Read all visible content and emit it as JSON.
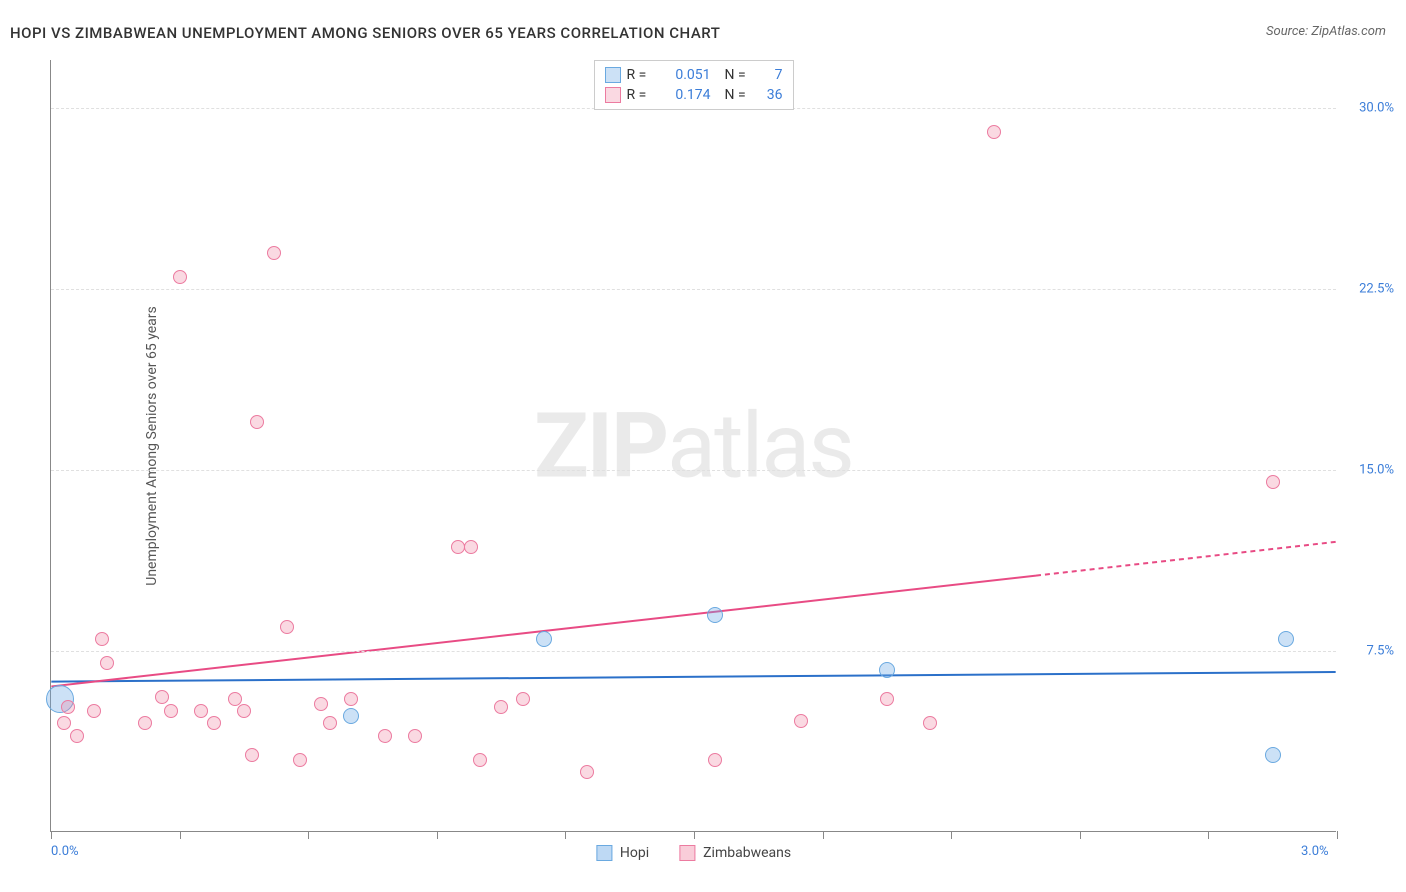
{
  "title": "HOPI VS ZIMBABWEAN UNEMPLOYMENT AMONG SENIORS OVER 65 YEARS CORRELATION CHART",
  "source": "Source: ZipAtlas.com",
  "ylabel": "Unemployment Among Seniors over 65 years",
  "watermark_bold": "ZIP",
  "watermark_light": "atlas",
  "chart": {
    "type": "scatter",
    "xlim": [
      0.0,
      3.0
    ],
    "ylim": [
      0.0,
      32.0
    ],
    "x_ticks_pct": [
      0,
      10,
      20,
      30,
      40,
      50,
      60,
      70,
      80,
      90,
      100
    ],
    "x_axis_labels": [
      {
        "pos": 0,
        "text": "0.0%"
      },
      {
        "pos": 100,
        "text": "3.0%"
      }
    ],
    "y_gridlines": [
      7.5,
      15.0,
      22.5,
      30.0
    ],
    "y_axis_labels": [
      {
        "val": 7.5,
        "text": "7.5%"
      },
      {
        "val": 15.0,
        "text": "15.0%"
      },
      {
        "val": 22.5,
        "text": "22.5%"
      },
      {
        "val": 30.0,
        "text": "30.0%"
      }
    ],
    "series": [
      {
        "name": "Hopi",
        "color_fill": "rgba(110,170,230,0.35)",
        "color_stroke": "#6aa9e0",
        "line_color": "#2b70c9",
        "r_value": "0.051",
        "n_value": "7",
        "trend": {
          "x1": 0.0,
          "y1": 6.2,
          "x2": 3.0,
          "y2": 6.6,
          "solid_until": 3.0
        },
        "points": [
          {
            "x": 0.02,
            "y": 5.5,
            "r": 14
          },
          {
            "x": 0.7,
            "y": 4.8,
            "r": 8
          },
          {
            "x": 1.15,
            "y": 8.0,
            "r": 8
          },
          {
            "x": 1.55,
            "y": 9.0,
            "r": 8
          },
          {
            "x": 1.95,
            "y": 6.7,
            "r": 8
          },
          {
            "x": 2.85,
            "y": 3.2,
            "r": 8
          },
          {
            "x": 2.88,
            "y": 8.0,
            "r": 8
          }
        ]
      },
      {
        "name": "Zimbabweans",
        "color_fill": "rgba(240,130,160,0.30)",
        "color_stroke": "#ec7ba0",
        "line_color": "#e84b84",
        "r_value": "0.174",
        "n_value": "36",
        "trend": {
          "x1": 0.0,
          "y1": 6.0,
          "x2": 3.0,
          "y2": 12.0,
          "solid_until": 2.3
        },
        "points": [
          {
            "x": 0.03,
            "y": 4.5,
            "r": 7
          },
          {
            "x": 0.04,
            "y": 5.2,
            "r": 7
          },
          {
            "x": 0.06,
            "y": 4.0,
            "r": 7
          },
          {
            "x": 0.1,
            "y": 5.0,
            "r": 7
          },
          {
            "x": 0.12,
            "y": 8.0,
            "r": 7
          },
          {
            "x": 0.13,
            "y": 7.0,
            "r": 7
          },
          {
            "x": 0.22,
            "y": 4.5,
            "r": 7
          },
          {
            "x": 0.26,
            "y": 5.6,
            "r": 7
          },
          {
            "x": 0.28,
            "y": 5.0,
            "r": 7
          },
          {
            "x": 0.3,
            "y": 23.0,
            "r": 7
          },
          {
            "x": 0.35,
            "y": 5.0,
            "r": 7
          },
          {
            "x": 0.38,
            "y": 4.5,
            "r": 7
          },
          {
            "x": 0.43,
            "y": 5.5,
            "r": 7
          },
          {
            "x": 0.45,
            "y": 5.0,
            "r": 7
          },
          {
            "x": 0.47,
            "y": 3.2,
            "r": 7
          },
          {
            "x": 0.48,
            "y": 17.0,
            "r": 7
          },
          {
            "x": 0.52,
            "y": 24.0,
            "r": 7
          },
          {
            "x": 0.55,
            "y": 8.5,
            "r": 7
          },
          {
            "x": 0.58,
            "y": 3.0,
            "r": 7
          },
          {
            "x": 0.63,
            "y": 5.3,
            "r": 7
          },
          {
            "x": 0.65,
            "y": 4.5,
            "r": 7
          },
          {
            "x": 0.7,
            "y": 5.5,
            "r": 7
          },
          {
            "x": 0.78,
            "y": 4.0,
            "r": 7
          },
          {
            "x": 0.85,
            "y": 4.0,
            "r": 7
          },
          {
            "x": 0.95,
            "y": 11.8,
            "r": 7
          },
          {
            "x": 0.98,
            "y": 11.8,
            "r": 7
          },
          {
            "x": 1.0,
            "y": 3.0,
            "r": 7
          },
          {
            "x": 1.05,
            "y": 5.2,
            "r": 7
          },
          {
            "x": 1.1,
            "y": 5.5,
            "r": 7
          },
          {
            "x": 1.25,
            "y": 2.5,
            "r": 7
          },
          {
            "x": 1.55,
            "y": 3.0,
            "r": 7
          },
          {
            "x": 1.75,
            "y": 4.6,
            "r": 7
          },
          {
            "x": 1.95,
            "y": 5.5,
            "r": 7
          },
          {
            "x": 2.05,
            "y": 4.5,
            "r": 7
          },
          {
            "x": 2.2,
            "y": 29.0,
            "r": 7
          },
          {
            "x": 2.85,
            "y": 14.5,
            "r": 7
          }
        ]
      }
    ]
  },
  "legend_bottom": [
    {
      "label": "Hopi",
      "fill": "rgba(110,170,230,0.45)",
      "stroke": "#6aa9e0"
    },
    {
      "label": "Zimbabweans",
      "fill": "rgba(240,130,160,0.40)",
      "stroke": "#ec7ba0"
    }
  ]
}
